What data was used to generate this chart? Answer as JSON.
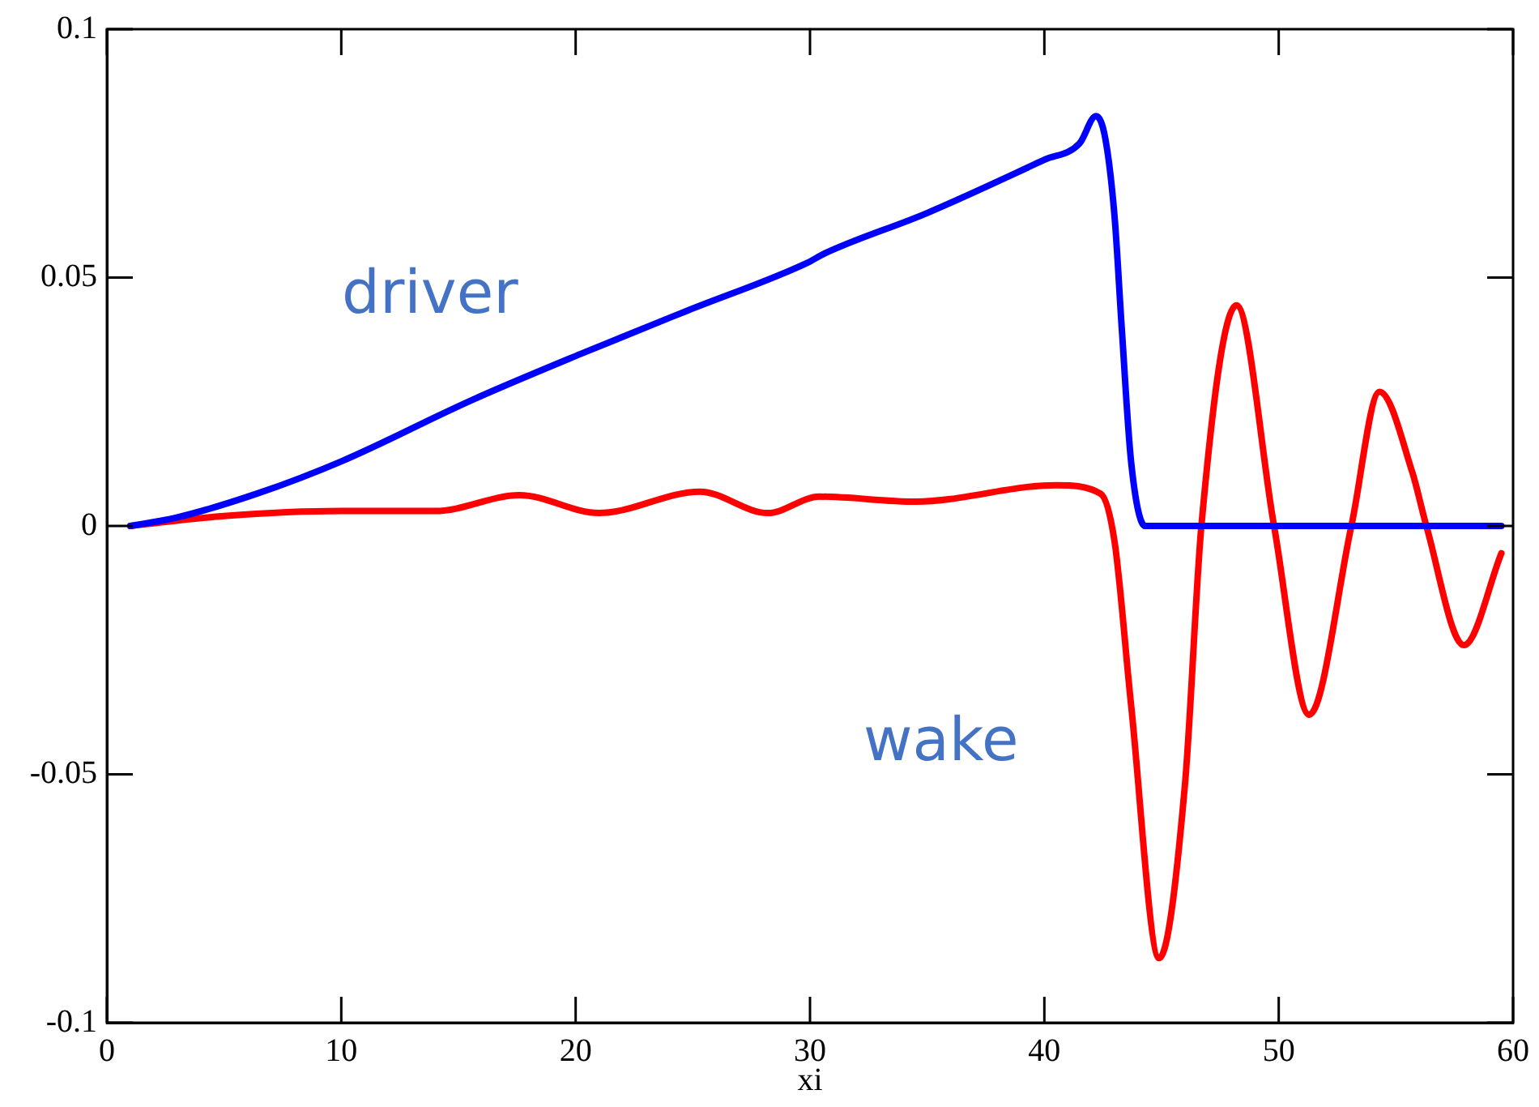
{
  "chart_data": {
    "type": "line",
    "xlabel": "xi",
    "xlim": [
      0,
      60
    ],
    "xticks": [
      0,
      10,
      20,
      30,
      40,
      50,
      60
    ],
    "ylim": [
      -0.1,
      0.1
    ],
    "yticks": [
      -0.1,
      -0.05,
      0,
      0.05,
      0.1
    ],
    "grid": false,
    "legend": false,
    "marker": "none",
    "line_style": "solid",
    "series": [
      {
        "name": "driver",
        "color": "#0000ff",
        "x": [
          1,
          2.9,
          6.4,
          10,
          15.6,
          20.2,
          24.8,
          29.9,
          30.6,
          35,
          40,
          41.5,
          42.2,
          42.6,
          43,
          43.3,
          43.7,
          44.3,
          50,
          59.5
        ],
        "values": [
          0,
          0.0016,
          0.0065,
          0.013,
          0.0254,
          0.0346,
          0.0434,
          0.053,
          0.0548,
          0.063,
          0.0737,
          0.077,
          0.0825,
          0.078,
          0.062,
          0.04,
          0.013,
          0,
          0,
          0
        ]
      },
      {
        "name": "wake",
        "color": "#ff0000",
        "x": [
          1,
          5,
          10,
          14,
          17.6,
          21,
          25.3,
          28.2,
          30.4,
          34.5,
          40.5,
          42.4,
          43,
          43.7,
          44.9,
          46,
          46.7,
          48.2,
          49.8,
          51.3,
          53.1,
          54.3,
          55.7,
          56.3,
          57.9,
          59.5
        ],
        "values": [
          0,
          0.002,
          0.003,
          0.003,
          0.0062,
          0.0026,
          0.0069,
          0.0026,
          0.0059,
          0.0049,
          0.0082,
          0.0065,
          -0.0033,
          -0.036,
          -0.087,
          -0.052,
          0,
          0.0444,
          0,
          -0.038,
          0,
          0.027,
          0.0108,
          0,
          -0.024,
          -0.0055
        ]
      }
    ]
  }
}
